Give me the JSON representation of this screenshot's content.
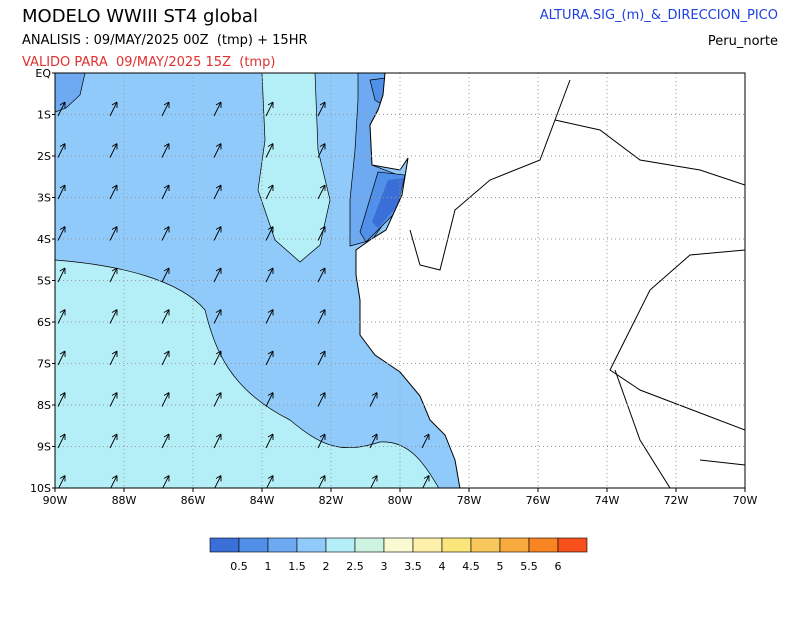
{
  "header": {
    "title": "MODELO WWIII ST4 global",
    "analysis": "ANALISIS : 09/MAY/2025 00Z  (tmp) + 15HR",
    "valid": "VALIDO PARA  09/MAY/2025 15Z  (tmp)",
    "variable": "ALTURA.SIG_(m)_&_DIRECCION_PICO",
    "region": "Peru_norte"
  },
  "map": {
    "x_labels": [
      "90W",
      "88W",
      "86W",
      "84W",
      "82W",
      "80W",
      "78W",
      "76W",
      "74W",
      "72W",
      "70W"
    ],
    "y_labels": [
      "EQ",
      "1S",
      "2S",
      "3S",
      "4S",
      "5S",
      "6S",
      "7S",
      "8S",
      "9S",
      "10S"
    ]
  },
  "legend": {
    "colors": [
      "#3a6fd8",
      "#5090e8",
      "#6eaaf2",
      "#8fcafa",
      "#b4eef6",
      "#cdf4e0",
      "#fafad2",
      "#fcf0aa",
      "#fae67a",
      "#f8c85c",
      "#f8aa3e",
      "#f88424",
      "#f8501c"
    ],
    "labels": [
      "0.5",
      "1",
      "1.5",
      "2",
      "2.5",
      "3",
      "3.5",
      "4",
      "4.5",
      "5",
      "5.5",
      "6"
    ]
  }
}
